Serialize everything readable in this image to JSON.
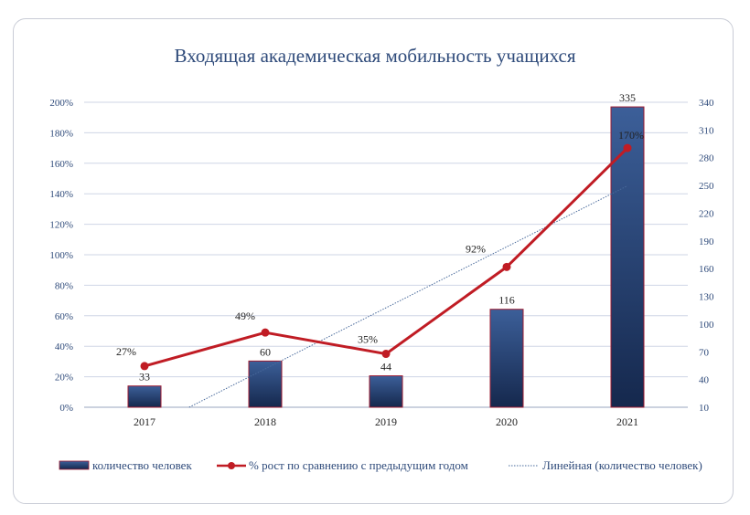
{
  "chart_data": {
    "type": "bar",
    "title": "Входящая академическая мобильность учащихся",
    "categories": [
      "2017",
      "2018",
      "2019",
      "2020",
      "2021"
    ],
    "series": [
      {
        "name": "количество человек",
        "type": "bar",
        "axis": "right",
        "values": [
          33,
          60,
          44,
          116,
          335
        ],
        "labels": [
          "33",
          "60",
          "44",
          "116",
          "335"
        ]
      },
      {
        "name": "% рост по сравнению с предыдущим годом",
        "type": "line",
        "axis": "left",
        "values": [
          27,
          49,
          35,
          92,
          170
        ],
        "labels": [
          "27%",
          "49%",
          "35%",
          "92%",
          "170%"
        ]
      },
      {
        "name": "Линейная (количество человек)",
        "type": "trendline",
        "axis": "right",
        "of_series": "количество человек"
      }
    ],
    "left_axis": {
      "ylim": [
        0,
        200
      ],
      "ticks": [
        "0%",
        "20%",
        "40%",
        "60%",
        "80%",
        "100%",
        "120%",
        "140%",
        "160%",
        "180%",
        "200%"
      ]
    },
    "right_axis": {
      "ylim": [
        10,
        340
      ],
      "ticks": [
        "10",
        "40",
        "70",
        "100",
        "130",
        "160",
        "190",
        "220",
        "250",
        "280",
        "310",
        "340"
      ]
    },
    "grid": true,
    "legend": "bottom"
  },
  "colors": {
    "bar_fill_top": "#3c5f99",
    "bar_fill_bottom": "#15284d",
    "bar_border": "#9e1b32",
    "line": "#c01c24",
    "trend": "#4a6b9c",
    "grid": "#cfd6e6",
    "title": "#2e4a7a"
  }
}
